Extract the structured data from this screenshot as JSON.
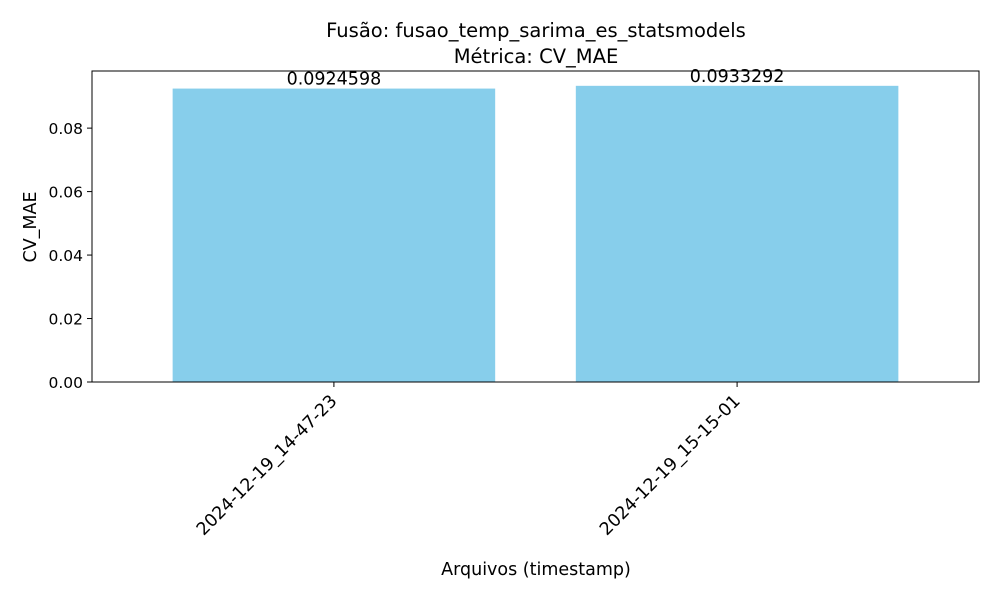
{
  "chart_data": {
    "type": "bar",
    "title": "Fusão: fusao_temp_sarima_es_statsmodels",
    "subtitle": "Métrica: CV_MAE",
    "xlabel": "Arquivos (timestamp)",
    "ylabel": "CV_MAE",
    "categories": [
      "2024-12-19_14-47-23",
      "2024-12-19_15-15-01"
    ],
    "values": [
      0.0924598,
      0.0933292
    ],
    "data_labels": [
      "0.0924598",
      "0.0933292"
    ],
    "ylim": [
      0,
      0.098
    ],
    "yticks": [
      0.0,
      0.02,
      0.04,
      0.06,
      0.08
    ],
    "ytick_labels": [
      "0.00",
      "0.02",
      "0.04",
      "0.06",
      "0.08"
    ],
    "bar_color": "#87CEEB",
    "grid": false,
    "legend": "none"
  }
}
